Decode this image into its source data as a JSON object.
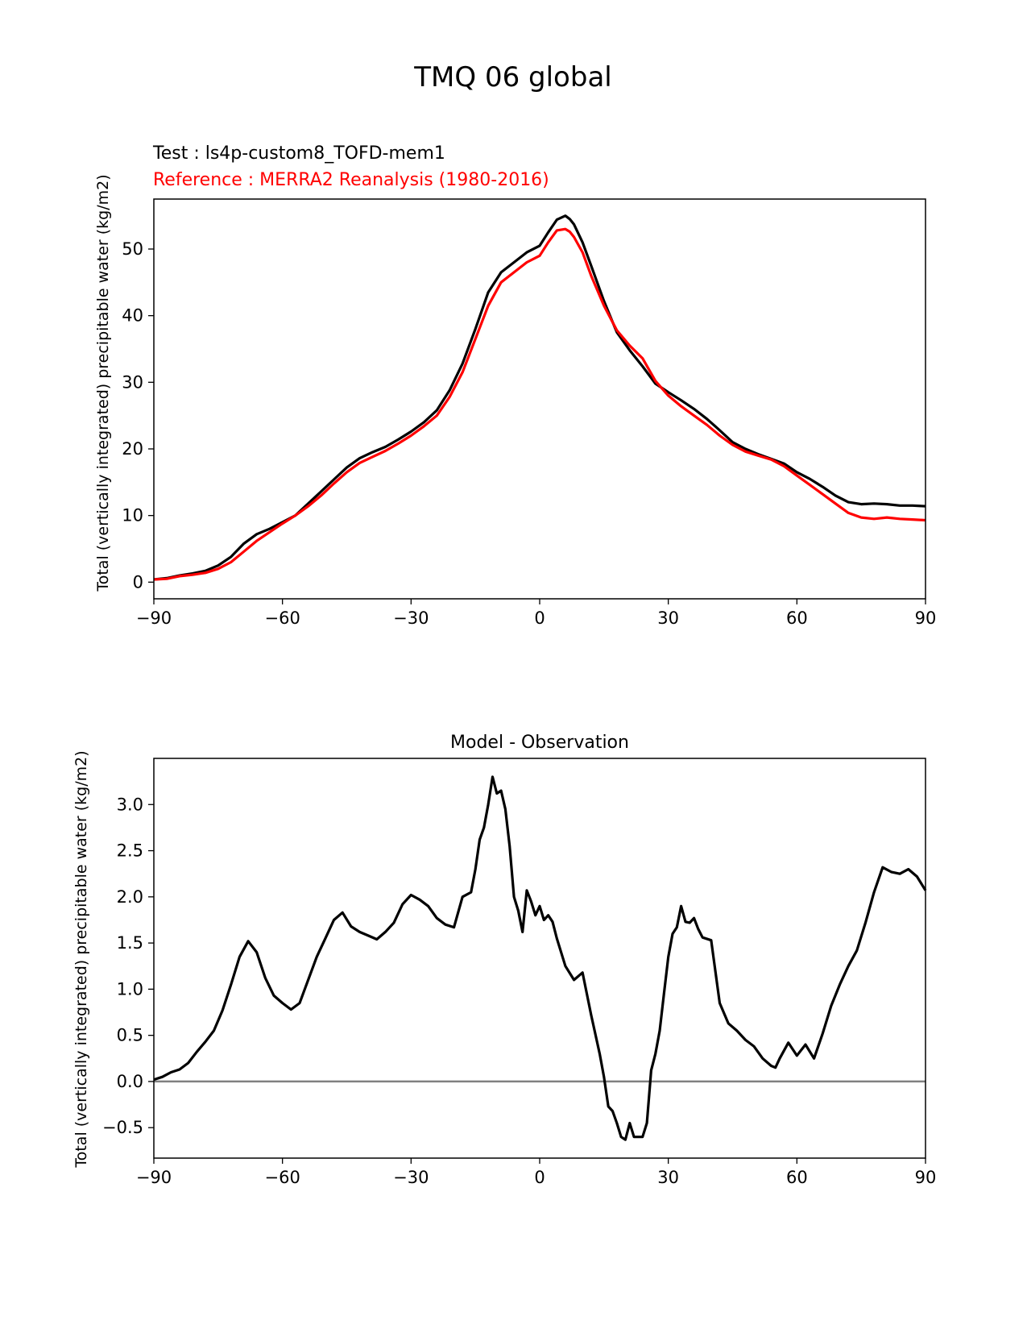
{
  "figure": {
    "title": "TMQ 06 global"
  },
  "colors": {
    "test": "#000000",
    "reference": "#ff0000",
    "zero_line": "#808080",
    "frame": "#000000"
  },
  "chart_data": [
    {
      "type": "line",
      "name": "upper",
      "test_label": "Test : ls4p-custom8_TOFD-mem1",
      "reference_label": "Reference : MERRA2 Reanalysis (1980-2016)",
      "ylabel": "Total (vertically integrated) precipitable water (kg/m2)",
      "xlim": [
        -90,
        90
      ],
      "ylim": [
        -2.5,
        57.5
      ],
      "xticks": [
        -90,
        -60,
        -30,
        0,
        30,
        60,
        90
      ],
      "xtick_labels": [
        "−90",
        "−60",
        "−30",
        "0",
        "30",
        "60",
        "90"
      ],
      "yticks": [
        0,
        10,
        20,
        30,
        40,
        50
      ],
      "ytick_labels": [
        "0",
        "10",
        "20",
        "30",
        "40",
        "50"
      ],
      "series": [
        {
          "name": "Test",
          "color": "#000000",
          "x": [
            -90,
            -87,
            -84,
            -81,
            -78,
            -75,
            -72,
            -69,
            -66,
            -63,
            -60,
            -57,
            -54,
            -51,
            -48,
            -45,
            -42,
            -39,
            -36,
            -33,
            -30,
            -27,
            -24,
            -21,
            -18,
            -15,
            -12,
            -9,
            -6,
            -3,
            0,
            2,
            4,
            6,
            7,
            8,
            10,
            12,
            15,
            18,
            21,
            24,
            27,
            30,
            33,
            36,
            39,
            42,
            45,
            48,
            51,
            54,
            57,
            60,
            63,
            66,
            69,
            72,
            75,
            78,
            81,
            84,
            87,
            90
          ],
          "values": [
            0.4,
            0.6,
            1.0,
            1.3,
            1.7,
            2.5,
            3.8,
            5.8,
            7.2,
            8.0,
            9.0,
            10.0,
            11.8,
            13.6,
            15.4,
            17.2,
            18.6,
            19.5,
            20.3,
            21.4,
            22.6,
            24.0,
            25.8,
            28.8,
            32.8,
            38.0,
            43.5,
            46.5,
            48.0,
            49.5,
            50.5,
            52.5,
            54.4,
            55.0,
            54.5,
            53.7,
            51.0,
            47.5,
            42.2,
            37.5,
            34.8,
            32.4,
            29.8,
            28.5,
            27.3,
            26.0,
            24.5,
            22.8,
            21.0,
            20.0,
            19.2,
            18.5,
            17.8,
            16.5,
            15.5,
            14.3,
            13.0,
            12.0,
            11.7,
            11.8,
            11.7,
            11.5,
            11.5,
            11.4
          ]
        },
        {
          "name": "Reference",
          "color": "#ff0000",
          "x": [
            -90,
            -87,
            -84,
            -81,
            -78,
            -75,
            -72,
            -69,
            -66,
            -63,
            -60,
            -57,
            -54,
            -51,
            -48,
            -45,
            -42,
            -39,
            -36,
            -33,
            -30,
            -27,
            -24,
            -21,
            -18,
            -15,
            -12,
            -9,
            -6,
            -3,
            0,
            2,
            4,
            6,
            7,
            8,
            10,
            12,
            15,
            18,
            21,
            24,
            27,
            30,
            33,
            36,
            39,
            42,
            45,
            48,
            51,
            54,
            57,
            60,
            63,
            66,
            69,
            72,
            75,
            78,
            81,
            84,
            87,
            90
          ],
          "values": [
            0.4,
            0.5,
            0.9,
            1.1,
            1.4,
            2.0,
            3.0,
            4.6,
            6.2,
            7.5,
            8.8,
            10.0,
            11.4,
            13.0,
            14.8,
            16.5,
            17.9,
            18.8,
            19.7,
            20.8,
            22.0,
            23.4,
            25.0,
            27.8,
            31.5,
            36.5,
            41.5,
            45.0,
            46.5,
            48.0,
            49.0,
            51.0,
            52.8,
            53.0,
            52.6,
            51.8,
            49.5,
            46.0,
            41.5,
            37.8,
            35.5,
            33.6,
            30.2,
            28.0,
            26.4,
            25.0,
            23.6,
            22.0,
            20.6,
            19.6,
            19.0,
            18.4,
            17.4,
            16.0,
            14.6,
            13.2,
            11.8,
            10.4,
            9.7,
            9.5,
            9.7,
            9.5,
            9.4,
            9.3
          ]
        }
      ]
    },
    {
      "type": "line",
      "name": "lower",
      "title": "Model - Observation",
      "ylabel": "Total (vertically integrated) precipitable water (kg/m2)",
      "xlim": [
        -90,
        90
      ],
      "ylim": [
        -0.83,
        3.5
      ],
      "xticks": [
        -90,
        -60,
        -30,
        0,
        30,
        60,
        90
      ],
      "xtick_labels": [
        "−90",
        "−60",
        "−30",
        "0",
        "30",
        "60",
        "90"
      ],
      "yticks": [
        -0.5,
        0.0,
        0.5,
        1.0,
        1.5,
        2.0,
        2.5,
        3.0
      ],
      "ytick_labels": [
        "−0.5",
        "0.0",
        "0.5",
        "1.0",
        "1.5",
        "2.0",
        "2.5",
        "3.0"
      ],
      "zero_line": 0,
      "series": [
        {
          "name": "Model - Observation",
          "color": "#000000",
          "x": [
            -90,
            -88,
            -86,
            -84,
            -82,
            -80,
            -78,
            -76,
            -74,
            -72,
            -70,
            -68,
            -66,
            -64,
            -62,
            -60,
            -58,
            -56,
            -54,
            -52,
            -50,
            -48,
            -46,
            -44,
            -42,
            -40,
            -38,
            -36,
            -34,
            -32,
            -30,
            -28,
            -26,
            -24,
            -22,
            -20,
            -18,
            -16,
            -15,
            -14,
            -13,
            -12,
            -11,
            -10,
            -9,
            -8,
            -7,
            -6,
            -5,
            -4,
            -3,
            -2,
            -1,
            0,
            1,
            2,
            3,
            4,
            6,
            8,
            10,
            12,
            14,
            15,
            16,
            17,
            18,
            19,
            20,
            21,
            22,
            23,
            24,
            25,
            26,
            27,
            28,
            29,
            30,
            31,
            32,
            33,
            34,
            35,
            36,
            37,
            38,
            40,
            42,
            44,
            46,
            48,
            50,
            52,
            54,
            55,
            56,
            58,
            60,
            62,
            64,
            66,
            68,
            70,
            72,
            74,
            76,
            78,
            80,
            82,
            84,
            86,
            88,
            90
          ],
          "values": [
            0.02,
            0.05,
            0.1,
            0.13,
            0.2,
            0.32,
            0.43,
            0.55,
            0.77,
            1.05,
            1.35,
            1.52,
            1.4,
            1.12,
            0.93,
            0.85,
            0.78,
            0.85,
            1.1,
            1.35,
            1.55,
            1.75,
            1.83,
            1.68,
            1.62,
            1.58,
            1.54,
            1.62,
            1.72,
            1.92,
            2.02,
            1.97,
            1.9,
            1.77,
            1.7,
            1.67,
            2.0,
            2.05,
            2.3,
            2.62,
            2.75,
            3.0,
            3.3,
            3.12,
            3.15,
            2.95,
            2.55,
            2.0,
            1.85,
            1.62,
            2.07,
            1.95,
            1.8,
            1.9,
            1.75,
            1.8,
            1.73,
            1.55,
            1.25,
            1.1,
            1.18,
            0.72,
            0.3,
            0.05,
            -0.27,
            -0.32,
            -0.45,
            -0.6,
            -0.63,
            -0.45,
            -0.6,
            -0.6,
            -0.6,
            -0.45,
            0.12,
            0.3,
            0.55,
            0.95,
            1.35,
            1.6,
            1.67,
            1.9,
            1.73,
            1.72,
            1.77,
            1.65,
            1.56,
            1.53,
            0.85,
            0.63,
            0.55,
            0.45,
            0.38,
            0.25,
            0.17,
            0.15,
            0.25,
            0.42,
            0.28,
            0.4,
            0.25,
            0.52,
            0.82,
            1.05,
            1.25,
            1.42,
            1.72,
            2.05,
            2.32,
            2.27,
            2.25,
            2.3,
            2.22,
            2.07
          ]
        }
      ]
    }
  ]
}
